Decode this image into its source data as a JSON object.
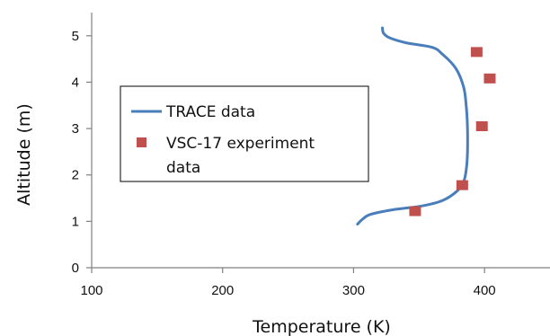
{
  "chart_data": {
    "type": "scatter",
    "xlabel": "Temperature (K)",
    "ylabel": "Altitude (m)",
    "xlim": [
      100,
      450
    ],
    "ylim": [
      0,
      5.5
    ],
    "x_ticks": [
      100,
      200,
      300,
      400
    ],
    "y_ticks": [
      0,
      1,
      2,
      3,
      4,
      5
    ],
    "grid": false,
    "legend_position": "left",
    "series": [
      {
        "name": "TRACE data",
        "kind": "line",
        "color": "#4a7ebb",
        "points": [
          [
            303,
            0.94
          ],
          [
            307,
            1.05
          ],
          [
            313,
            1.15
          ],
          [
            330,
            1.25
          ],
          [
            352,
            1.33
          ],
          [
            368,
            1.45
          ],
          [
            379,
            1.65
          ],
          [
            384,
            1.85
          ],
          [
            386,
            2.1
          ],
          [
            387,
            2.5
          ],
          [
            387,
            3.0
          ],
          [
            386,
            3.5
          ],
          [
            384,
            3.9
          ],
          [
            378,
            4.3
          ],
          [
            368,
            4.6
          ],
          [
            360,
            4.75
          ],
          [
            340,
            4.85
          ],
          [
            328,
            4.95
          ],
          [
            323,
            5.05
          ],
          [
            322,
            5.17
          ]
        ]
      },
      {
        "name": "VSC-17 experiment data",
        "kind": "scatter",
        "marker": "square",
        "color": "#c0504d",
        "points": [
          [
            347,
            1.22
          ],
          [
            383,
            1.78
          ],
          [
            398,
            3.05
          ],
          [
            404,
            4.08
          ],
          [
            394,
            4.65
          ]
        ]
      }
    ]
  }
}
